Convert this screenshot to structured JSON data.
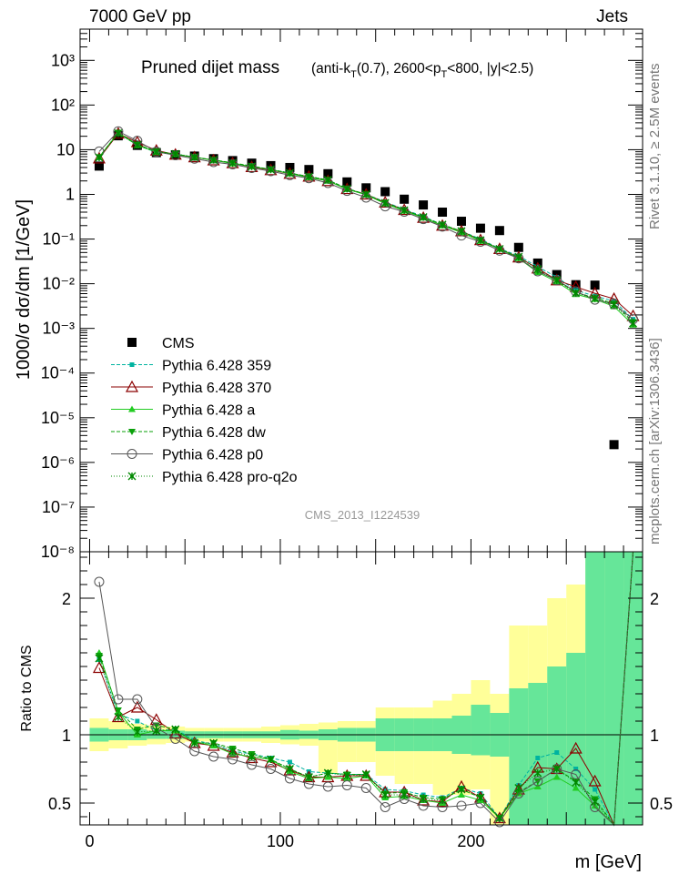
{
  "header": {
    "energy": "7000 GeV pp",
    "process": "Jets",
    "side_label_top": "Rivet 3.1.10, ≥ 2.5M events",
    "side_label_bottom": "mcplots.cern.ch [arXiv:1306.3436]",
    "analysis": "CMS_2013_I1224539"
  },
  "chart_data": [
    {
      "type": "scatter",
      "panel": "main",
      "title_main": "Pruned dijet mass",
      "title_sub": "(anti-k_T(0.7), 2600<p_T<800, |y|<2.5)",
      "ylabel": "1000/σ dσ/dm [1/GeV]",
      "yscale": "log",
      "ylim": [
        1e-08,
        5000
      ],
      "xlim": [
        -5,
        290
      ],
      "x_tick_labels": [
        "0",
        "100",
        "200"
      ],
      "y_tick_labels": [
        "10⁻⁸",
        "10⁻⁷",
        "10⁻⁶",
        "10⁻⁵",
        "10⁻⁴",
        "10⁻³",
        "10⁻²",
        "10⁻¹",
        "1",
        "10",
        "10²",
        "10³"
      ],
      "legend_position": "bottom-left",
      "x": [
        5,
        15,
        25,
        35,
        45,
        55,
        65,
        75,
        85,
        95,
        105,
        115,
        125,
        135,
        145,
        155,
        165,
        175,
        185,
        195,
        205,
        215,
        225,
        235,
        245,
        255,
        265,
        275,
        285
      ],
      "series": [
        {
          "name": "CMS",
          "color": "#000000",
          "marker": "square",
          "values": [
            4.3,
            20.5,
            12.5,
            8.6,
            7.7,
            7.2,
            6.3,
            5.7,
            5.0,
            4.4,
            4.0,
            3.6,
            2.9,
            1.9,
            1.4,
            1.15,
            0.78,
            0.58,
            0.4,
            0.25,
            0.175,
            0.155,
            0.065,
            0.029,
            0.016,
            0.0095,
            0.0093,
            2.5e-06,
            null
          ]
        },
        {
          "name": "Pythia 6.428 359",
          "color": "#00b3a0",
          "marker": "square-small",
          "values": [
            6.6,
            23.5,
            12.6,
            8.7,
            8.0,
            6.8,
            5.8,
            5.0,
            4.3,
            3.6,
            3.0,
            2.5,
            2.1,
            1.35,
            1.0,
            0.68,
            0.46,
            0.32,
            0.21,
            0.15,
            0.1,
            0.061,
            0.042,
            0.024,
            0.014,
            0.0071,
            0.0053,
            0.0041,
            0.0016
          ]
        },
        {
          "name": "Pythia 6.428 370",
          "color": "#8b0000",
          "marker": "triangle-open",
          "values": [
            6.4,
            23.0,
            14.8,
            9.6,
            7.8,
            6.8,
            5.8,
            5.0,
            4.1,
            3.5,
            2.9,
            2.5,
            2.0,
            1.32,
            1.0,
            0.66,
            0.45,
            0.3,
            0.2,
            0.15,
            0.095,
            0.06,
            0.039,
            0.022,
            0.012,
            0.0085,
            0.0061,
            0.0046,
            0.0019
          ]
        },
        {
          "name": "Pythia 6.428 a",
          "color": "#22cc22",
          "marker": "triangle",
          "values": [
            6.9,
            24.0,
            12.5,
            8.9,
            7.9,
            6.8,
            5.8,
            4.9,
            4.2,
            3.6,
            2.9,
            2.4,
            2.0,
            1.3,
            0.98,
            0.62,
            0.43,
            0.3,
            0.2,
            0.14,
            0.09,
            0.06,
            0.037,
            0.018,
            0.011,
            0.0058,
            0.0045,
            0.0031,
            0.0012
          ]
        },
        {
          "name": "Pythia 6.428 dw",
          "color": "#0aa00a",
          "marker": "triangle-down",
          "values": [
            6.8,
            24.2,
            13.0,
            9.2,
            8.0,
            6.8,
            5.9,
            5.1,
            4.3,
            3.6,
            3.0,
            2.5,
            2.1,
            1.35,
            1.0,
            0.65,
            0.45,
            0.31,
            0.21,
            0.15,
            0.095,
            0.06,
            0.038,
            0.019,
            0.012,
            0.0063,
            0.0049,
            0.0036,
            0.0014
          ]
        },
        {
          "name": "Pythia 6.428 p0",
          "color": "#555555",
          "marker": "circle-open",
          "values": [
            9.1,
            25.8,
            15.8,
            9.0,
            7.5,
            6.3,
            5.3,
            4.7,
            3.9,
            3.3,
            2.7,
            2.3,
            1.8,
            1.2,
            0.85,
            0.54,
            0.41,
            0.28,
            0.19,
            0.12,
            0.087,
            0.055,
            0.037,
            0.019,
            0.012,
            0.0067,
            0.0044,
            0.0035,
            0.0016
          ]
        },
        {
          "name": "Pythia 6.428 pro-q2o",
          "color": "#008800",
          "marker": "star",
          "values": [
            6.7,
            23.2,
            12.8,
            8.9,
            8.0,
            6.8,
            5.9,
            5.0,
            4.2,
            3.6,
            3.0,
            2.5,
            2.1,
            1.33,
            1.0,
            0.64,
            0.44,
            0.31,
            0.21,
            0.15,
            0.094,
            0.06,
            0.04,
            0.021,
            0.012,
            0.0062,
            0.0047,
            0.0034,
            0.0013
          ]
        }
      ]
    },
    {
      "type": "line",
      "panel": "ratio",
      "ylabel": "Ratio to CMS",
      "xlabel": "m [GeV]",
      "ylim": [
        0.34,
        2.34
      ],
      "xlim": [
        -5,
        290
      ],
      "y_tick_labels": [
        "0.5",
        "1",
        "2"
      ],
      "x": [
        5,
        15,
        25,
        35,
        45,
        55,
        65,
        75,
        85,
        95,
        105,
        115,
        125,
        135,
        145,
        155,
        165,
        175,
        185,
        195,
        205,
        215,
        225,
        235,
        245,
        255,
        265,
        275,
        285
      ],
      "bin_edges": [
        0,
        10,
        20,
        30,
        40,
        50,
        60,
        70,
        80,
        90,
        100,
        110,
        120,
        130,
        140,
        150,
        160,
        170,
        180,
        190,
        200,
        210,
        220,
        230,
        240,
        250,
        260,
        270,
        280,
        290
      ],
      "band_stat": {
        "color": "#66e699",
        "low": [
          0.95,
          0.96,
          0.96,
          0.97,
          0.97,
          0.975,
          0.975,
          0.975,
          0.975,
          0.975,
          0.965,
          0.97,
          0.96,
          0.95,
          0.95,
          0.88,
          0.88,
          0.88,
          0.88,
          0.86,
          0.85,
          0.84,
          0.34,
          0.34,
          0.34,
          0.34,
          0.34,
          0.34,
          0.34
        ],
        "high": [
          1.05,
          1.04,
          1.04,
          1.03,
          1.03,
          1.025,
          1.025,
          1.025,
          1.025,
          1.025,
          1.035,
          1.03,
          1.04,
          1.05,
          1.05,
          1.12,
          1.12,
          1.12,
          1.12,
          1.14,
          1.22,
          1.16,
          1.34,
          1.38,
          1.5,
          1.6,
          2.34,
          2.34,
          2.34
        ]
      },
      "band_total": {
        "color": "#ffff99",
        "low": [
          0.88,
          0.9,
          0.92,
          0.93,
          0.94,
          0.95,
          0.95,
          0.95,
          0.95,
          0.94,
          0.93,
          0.92,
          0.72,
          0.8,
          0.8,
          0.7,
          0.64,
          0.64,
          0.56,
          0.56,
          0.6,
          0.34,
          0.34,
          0.34,
          0.34,
          0.34,
          0.34,
          0.34,
          0.34
        ],
        "high": [
          1.12,
          1.1,
          1.08,
          1.07,
          1.06,
          1.05,
          1.05,
          1.05,
          1.05,
          1.06,
          1.07,
          1.08,
          1.09,
          1.1,
          1.1,
          1.2,
          1.2,
          1.2,
          1.25,
          1.3,
          1.4,
          1.3,
          1.8,
          1.8,
          2.0,
          2.1,
          2.34,
          2.34,
          2.34
        ]
      },
      "series": [
        {
          "name": "Pythia 6.428 359",
          "color": "#00b3a0",
          "dash": "4,2",
          "values": [
            1.55,
            1.15,
            1.1,
            1.03,
            1.04,
            0.96,
            0.93,
            0.88,
            0.86,
            0.83,
            0.8,
            0.73,
            0.72,
            0.71,
            0.71,
            0.6,
            0.59,
            0.56,
            0.54,
            0.61,
            0.57,
            0.39,
            0.63,
            0.83,
            0.87,
            0.75,
            0.6,
            0.34,
            2.34
          ]
        },
        {
          "name": "Pythia 6.428 370",
          "color": "#8b0000",
          "dash": "",
          "values": [
            1.49,
            1.13,
            1.2,
            1.11,
            1.01,
            0.94,
            0.92,
            0.87,
            0.83,
            0.8,
            0.74,
            0.69,
            0.69,
            0.7,
            0.7,
            0.58,
            0.58,
            0.52,
            0.51,
            0.62,
            0.54,
            0.39,
            0.6,
            0.76,
            0.75,
            0.9,
            0.66,
            0.34,
            2.34
          ]
        },
        {
          "name": "Pythia 6.428 a",
          "color": "#22cc22",
          "dash": "",
          "values": [
            1.6,
            1.17,
            1.0,
            1.03,
            1.03,
            0.95,
            0.92,
            0.86,
            0.84,
            0.82,
            0.73,
            0.68,
            0.69,
            0.68,
            0.7,
            0.54,
            0.55,
            0.52,
            0.5,
            0.56,
            0.52,
            0.39,
            0.57,
            0.62,
            0.69,
            0.61,
            0.48,
            0.34,
            2.34
          ]
        },
        {
          "name": "Pythia 6.428 dw",
          "color": "#0aa00a",
          "dash": "4,2",
          "values": [
            1.58,
            1.18,
            1.04,
            1.07,
            1.04,
            0.94,
            0.94,
            0.9,
            0.86,
            0.82,
            0.75,
            0.69,
            0.72,
            0.71,
            0.71,
            0.57,
            0.58,
            0.54,
            0.53,
            0.6,
            0.54,
            0.39,
            0.58,
            0.66,
            0.75,
            0.66,
            0.53,
            0.34,
            2.34
          ]
        },
        {
          "name": "Pythia 6.428 p0",
          "color": "#555555",
          "dash": "",
          "values": [
            2.12,
            1.26,
            1.26,
            1.05,
            0.97,
            0.88,
            0.84,
            0.82,
            0.78,
            0.75,
            0.68,
            0.64,
            0.62,
            0.63,
            0.61,
            0.47,
            0.53,
            0.48,
            0.47,
            0.48,
            0.5,
            0.36,
            0.57,
            0.66,
            0.75,
            0.71,
            0.47,
            0.34,
            2.34
          ]
        },
        {
          "name": "Pythia 6.428 pro-q2o",
          "color": "#008800",
          "dash": "1,2",
          "values": [
            1.56,
            1.13,
            1.02,
            1.03,
            1.04,
            0.94,
            0.94,
            0.88,
            0.84,
            0.82,
            0.75,
            0.69,
            0.72,
            0.7,
            0.71,
            0.56,
            0.56,
            0.53,
            0.52,
            0.6,
            0.54,
            0.39,
            0.61,
            0.72,
            0.75,
            0.65,
            0.51,
            0.34,
            2.34
          ]
        }
      ]
    }
  ]
}
